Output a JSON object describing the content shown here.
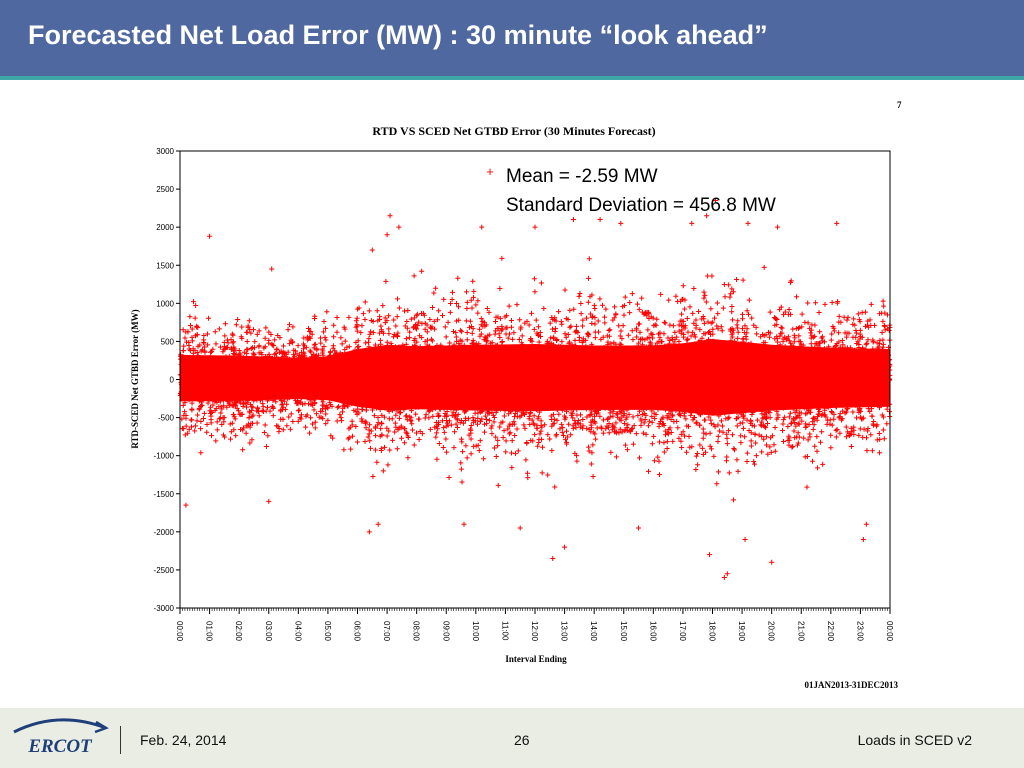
{
  "slide": {
    "title": "Forecasted Net Load Error (MW) : 30 minute “look ahead”",
    "page_number": "7"
  },
  "annotation": {
    "mean": "Mean = -2.59 MW",
    "std": "Standard Deviation = 456.8 MW"
  },
  "chart_data": {
    "type": "scatter",
    "title": "RTD VS SCED Net GTBD Error (30 Minutes Forecast)",
    "xlabel": "Interval Ending",
    "ylabel": "RTD-SCED Net GTBD Error (MW)",
    "ylim": [
      -3000,
      3000
    ],
    "yticks": [
      "3000",
      "2500",
      "2000",
      "1500",
      "1000",
      "500",
      "0",
      "-500",
      "-1000",
      "-1500",
      "-2000",
      "-2500",
      "-3000"
    ],
    "xlim": [
      0,
      24
    ],
    "xticks": [
      "00:00",
      "01:00",
      "02:00",
      "03:00",
      "04:00",
      "05:00",
      "06:00",
      "07:00",
      "08:00",
      "09:00",
      "10:00",
      "11:00",
      "12:00",
      "13:00",
      "14:00",
      "15:00",
      "16:00",
      "17:00",
      "18:00",
      "19:00",
      "20:00",
      "21:00",
      "22:00",
      "23:00",
      "00:00"
    ],
    "date_range": "01JAN2013-31DEC2013",
    "marker": "+",
    "color": "#ff0000",
    "grid": false,
    "series": [
      {
        "statistics": {
          "mean": -2.59,
          "std": 456.8
        },
        "spread_profile": [
          {
            "x": 0,
            "std": 340
          },
          {
            "x": 2,
            "std": 330
          },
          {
            "x": 4,
            "std": 300
          },
          {
            "x": 5,
            "std": 320
          },
          {
            "x": 6,
            "std": 420
          },
          {
            "x": 7,
            "std": 480
          },
          {
            "x": 8,
            "std": 460
          },
          {
            "x": 9,
            "std": 470
          },
          {
            "x": 10,
            "std": 480
          },
          {
            "x": 12,
            "std": 490
          },
          {
            "x": 14,
            "std": 470
          },
          {
            "x": 16,
            "std": 470
          },
          {
            "x": 17,
            "std": 500
          },
          {
            "x": 18,
            "std": 560
          },
          {
            "x": 19,
            "std": 520
          },
          {
            "x": 20,
            "std": 480
          },
          {
            "x": 22,
            "std": 440
          },
          {
            "x": 24,
            "std": 420
          }
        ],
        "outliers": [
          [
            3.1,
            1450
          ],
          [
            7.1,
            2150
          ],
          [
            7.4,
            2000
          ],
          [
            7.0,
            1900
          ],
          [
            6.5,
            1700
          ],
          [
            1.0,
            1880
          ],
          [
            10.2,
            2000
          ],
          [
            12.0,
            2000
          ],
          [
            13.3,
            2100
          ],
          [
            14.2,
            2100
          ],
          [
            14.9,
            2050
          ],
          [
            17.3,
            2050
          ],
          [
            17.8,
            2150
          ],
          [
            18.1,
            2350
          ],
          [
            19.2,
            2050
          ],
          [
            20.2,
            2000
          ],
          [
            22.2,
            2050
          ],
          [
            17.9,
            -2300
          ],
          [
            18.4,
            -2600
          ],
          [
            18.5,
            -2550
          ],
          [
            12.6,
            -2350
          ],
          [
            13.0,
            -2200
          ],
          [
            20.0,
            -2400
          ],
          [
            6.4,
            -2000
          ],
          [
            6.7,
            -1900
          ],
          [
            23.1,
            -2100
          ],
          [
            23.2,
            -1900
          ],
          [
            11.5,
            -1950
          ],
          [
            9.6,
            -1900
          ],
          [
            15.5,
            -1950
          ],
          [
            19.1,
            -2100
          ],
          [
            0.2,
            -1650
          ],
          [
            3.0,
            -1600
          ]
        ]
      }
    ]
  },
  "footer": {
    "logo_text": "ERCOT",
    "date": "Feb. 24, 2014",
    "page": "26",
    "deck": "Loads in SCED v2"
  },
  "colors": {
    "title_bar": "#5068a0",
    "accent": "#3fa7a7",
    "footer_bg": "#e9ede4",
    "points": "#ff0000",
    "logo_blue": "#1f3f7a"
  }
}
